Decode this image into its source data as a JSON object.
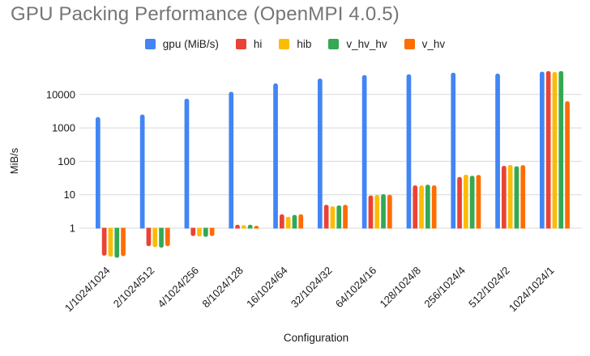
{
  "title": "GPU Packing Performance (OpenMPI 4.0.5)",
  "chart_data": {
    "type": "bar",
    "title": "GPU Packing Performance (OpenMPI 4.0.5)",
    "xlabel": "Configuration",
    "ylabel": "MiB/s",
    "y_scale": "log",
    "y_ticks": [
      10000,
      1000,
      100,
      10,
      1
    ],
    "ylim": [
      0.1,
      59000
    ],
    "grid": true,
    "legend_position": "top",
    "categories": [
      "1/1024/1024",
      "2/1024/512",
      "4/1024/256",
      "8/1024/128",
      "16/1024/64",
      "32/1024/32",
      "64/1024/16",
      "128/1024/8",
      "256/1024/4",
      "512/1024/2",
      "1024/1024/1"
    ],
    "series": [
      {
        "name": "gpu (MiB/s)",
        "color": "#4285F4",
        "values": [
          2100,
          2500,
          7500,
          12000,
          21500,
          30000,
          38000,
          40000,
          45000,
          42000,
          48000
        ]
      },
      {
        "name": "hi",
        "color": "#EA4335",
        "values": [
          0.15,
          0.29,
          0.58,
          1.27,
          2.6,
          5.0,
          9.5,
          19,
          34,
          73,
          50000
        ]
      },
      {
        "name": "hib",
        "color": "#FBBC04",
        "values": [
          0.14,
          0.27,
          0.56,
          1.23,
          2.2,
          4.5,
          9.8,
          19,
          40,
          78,
          47000
        ]
      },
      {
        "name": "v_hv_hv",
        "color": "#34A853",
        "values": [
          0.13,
          0.26,
          0.55,
          1.27,
          2.5,
          4.8,
          10.4,
          20,
          37,
          71,
          50000
        ]
      },
      {
        "name": "v_hv",
        "color": "#FF6D01",
        "values": [
          0.145,
          0.29,
          0.58,
          1.18,
          2.6,
          5.0,
          10.0,
          19,
          39,
          77,
          6300
        ]
      }
    ],
    "colors": {
      "grid": "#d9d9d9",
      "title": "#757575",
      "axis_text": "#1a1a1a",
      "legend_text": "#202124"
    }
  }
}
